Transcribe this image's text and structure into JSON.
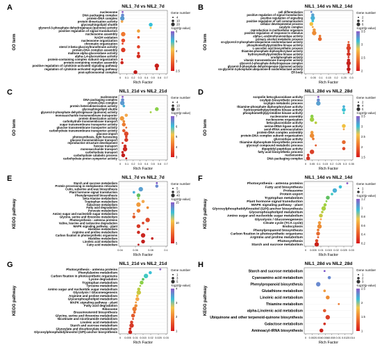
{
  "chart_data": [
    {
      "panel": "A",
      "type": "scatter",
      "title": "NIL1_7d vs NIL2_7d",
      "xlabel": "Rich Factor",
      "ylabel": "GO term",
      "xticks": [
        "0",
        "0.1",
        "0.2",
        "0.3",
        "0.4",
        "0.5",
        "0.6",
        "0.7"
      ],
      "xlim": [
        0,
        0.75
      ],
      "size_legend_title": "Gene number",
      "size_legend": [
        "4",
        "10",
        "20"
      ],
      "color_legend_title": "-log10(p-value)",
      "color_ticks": [
        "2.5",
        "3",
        "4",
        "5",
        "6"
      ],
      "categories": [
        "nucleosome",
        "DNA packaging complex",
        "protein-DNA complex",
        "protein dimerization activity",
        "glycosphingolipid shuttle",
        "glycerol-3-phosphate dehydrogenase (quinone) activity",
        "positive regulation of signal transduction",
        "nucleosome assembly",
        "NADH oxidation",
        "nucleosome organization",
        "chromatin organization",
        "sterol 3-beta-glucosyltransferase activity",
        "protein-DNA complex assembly",
        "maltose alpha-glucosidase activity",
        "alpha-1,4-glucosidase activity",
        "protein-containing complex subunit organization",
        "protein-containing complex assembly",
        "positive regulation of cytokinin-activated signaling pathway",
        "regulation of cytokinin-activated signaling pathway",
        "post-spliceosomal complex"
      ],
      "x": [
        0.04,
        0.04,
        0.035,
        0.03,
        0.5,
        0.5,
        0.3,
        0.05,
        0.3,
        0.05,
        0.04,
        0.3,
        0.05,
        0.3,
        0.3,
        0.03,
        0.03,
        0.6,
        0.6,
        0.25
      ],
      "colors": [
        "#8e5cc8",
        "#6a8ad0",
        "#5a9ad0",
        "#f2a64a",
        "#36c0d8",
        "#f3c64a",
        "#f0a038",
        "#f07830",
        "#ec5a2e",
        "#e84a2a",
        "#e44428",
        "#e04026",
        "#dc3a24",
        "#d83222",
        "#d42c20",
        "#d0281e",
        "#cc241c",
        "#c8201a",
        "#c41c18",
        "#c01816"
      ]
    },
    {
      "panel": "B",
      "type": "scatter",
      "title": "NIL1_14d vs NIL2_14d",
      "xlabel": "Rich Factor",
      "ylabel": "GO term",
      "xticks": [
        "0",
        "0.05",
        "0.1",
        "0.15",
        "0.2",
        "0.25",
        "0.3"
      ],
      "xlim": [
        0,
        0.32
      ],
      "size_legend_title": "Gene number",
      "size_legend": [
        "2",
        "4",
        "6"
      ],
      "color_legend_title": "-log10(p-value)",
      "color_ticks": [
        "2",
        "2.5",
        "3",
        "3.5"
      ],
      "categories": [
        "cell differentiation",
        "positive regulation of signal transduction",
        "positive regulation of signaling",
        "positive regulation of cell communication",
        "cellular developmental process",
        "catalytic complex",
        "reproduction in multicellular organism",
        "positive regulation of response to stimulus",
        "alpha-L-arabinofuranosidase activity",
        "primary alcohol metabolic process",
        "sn-glycerol-3-phosphate:ubiquinone oxidoreductase activity",
        "phosphomethylpyrimidine kinase activity",
        "L-ascorbic acid biosynthetic process",
        "thiamine-phosphate diphosphorylase activity",
        "hydroxymethylpyrimidine kinase activity",
        "urodiphosphate activity",
        "vitamin transmembrane transporter activity",
        "glycerol-3-phosphate dehydrogenase complex",
        "glycerol-3-phosphate dehydrogenase (quinone) activity",
        "sn-glycerol-3-phosphate:ubiquinone-8 oxidoreductase activity",
        "ER body"
      ],
      "x": [
        0.04,
        0.05,
        0.05,
        0.05,
        0.04,
        0.05,
        0.06,
        0.06,
        0.1,
        0.1,
        0.3,
        0.3,
        0.3,
        0.3,
        0.3,
        0.3,
        0.3,
        0.3,
        0.3,
        0.3,
        0.3
      ],
      "colors": [
        "#6a8ad0",
        "#5aa0d0",
        "#48b0d6",
        "#3ac0d6",
        "#f0c040",
        "#f4a84c",
        "#f09a3c",
        "#ec8c34",
        "#ea7a30",
        "#e66a2e",
        "#e25a2c",
        "#de4a2a",
        "#da4028",
        "#d63826",
        "#d23224",
        "#ce2c22",
        "#ca2620",
        "#c6221e",
        "#c21e1c",
        "#be1a1a",
        "#ba1618"
      ]
    },
    {
      "panel": "C",
      "type": "scatter",
      "title": "NIL1_21d vs NIL2_21d",
      "xlabel": "Rich Factor",
      "ylabel": "GO term",
      "xticks": [
        "0",
        "0.1",
        "0.2",
        "0.3",
        "0.4",
        "0.5",
        "0.6",
        "0.7"
      ],
      "xlim": [
        0,
        0.75
      ],
      "size_legend_title": "Gene number",
      "size_legend": [
        "4",
        "10",
        "20"
      ],
      "color_legend_title": "-log10(p-value)",
      "color_ticks": [
        "3",
        "4",
        "5",
        "6",
        "7"
      ],
      "categories": [
        "nucleosome",
        "DNA packaging complex",
        "protein-DNA complex",
        "protein heterodimerization activity",
        "glycosphingolipid shuttle",
        "glycerol-3-phosphate dehydrogenase (quinone) activity",
        "monosaccharide transmembrane transporter",
        "protein dimerization activity",
        "carbohydrate transmembrane transport",
        "sugar transmembrane transporter activity",
        "glucose transmembrane transporter activity",
        "carbohydrate transmembrane transporter activity",
        "glucose import",
        "photosynthesis, light harvesting",
        "glucose transmembrane transport",
        "reproductive structure development",
        "hexose transport",
        "monosaccharide transport",
        "carbohydrate transport",
        "carbohydrate catabolic process",
        "carbohydrate proton symporter activity"
      ],
      "x": [
        0.04,
        0.04,
        0.035,
        0.06,
        0.6,
        0.5,
        0.1,
        0.03,
        0.06,
        0.06,
        0.1,
        0.06,
        0.1,
        0.1,
        0.1,
        0.04,
        0.08,
        0.08,
        0.04,
        0.05,
        0.1
      ],
      "colors": [
        "#8e5cc8",
        "#6a8ad0",
        "#5a9ad0",
        "#48b0d6",
        "#8ad048",
        "#a0d040",
        "#f4a84c",
        "#f09a3c",
        "#ec8c34",
        "#ea7a30",
        "#e66a2e",
        "#e25a2c",
        "#de4a2a",
        "#da4028",
        "#d63826",
        "#d23224",
        "#ce2c22",
        "#ca2620",
        "#c6221e",
        "#c21e1c",
        "#be1a1a"
      ]
    },
    {
      "panel": "D",
      "type": "scatter",
      "title": "NIL1_28d vs NIL2_28d",
      "xlabel": "Rich Factor",
      "ylabel": "GO term",
      "xticks": [
        "0",
        "0.05",
        "0.1",
        "0.15",
        "0.2",
        "0.25",
        "0.3",
        "0.35"
      ],
      "xlim": [
        0,
        0.36
      ],
      "size_legend_title": "Gene number",
      "size_legend": [
        "2",
        "4",
        "6"
      ],
      "color_legend_title": "-log10(p-value)",
      "color_ticks": [
        "1.5",
        "2",
        "2.5",
        "3",
        "3.5"
      ],
      "categories": [
        "scopolin beta-glucosidase activity",
        "oxylipin biosynthetic process",
        "oxylipin metabolic process",
        "thiamine-phosphate diphosphorylase activity",
        "hydroxymethylpyrimidine kinase activity",
        "phosphomethylpyrimidine kinase activity",
        "nucleosome assembly",
        "nucleosome organization",
        "beta-glucosidase activity",
        "serine-tRNA ligase activity",
        "seryl-tRNA aminoacylation",
        "protein-DNA complex assembly",
        "protein-DNA complex subunit organization",
        "glucosidase activity",
        "thiamine diphosphate biosynthetic process",
        "glycosyl compound metabolic process",
        "dipeptidyl-peptidase activity",
        "fatty acid biosynthetic process",
        "nucleosome",
        "DNA packaging complex"
      ],
      "x": [
        0.1,
        0.1,
        0.1,
        0.3,
        0.3,
        0.3,
        0.05,
        0.05,
        0.08,
        0.3,
        0.3,
        0.05,
        0.05,
        0.06,
        0.3,
        0.08,
        0.3,
        0.05,
        0.02,
        0.02
      ],
      "colors": [
        "#8e5cc8",
        "#6a8ad0",
        "#5aa0d0",
        "#48b0d6",
        "#3ac0d6",
        "#40c8c0",
        "#8ad048",
        "#a0d040",
        "#b8cc40",
        "#f0c040",
        "#f4a84c",
        "#f09a3c",
        "#ec8c34",
        "#ea7a30",
        "#e66a2e",
        "#e25a2c",
        "#de4a2a",
        "#da4028",
        "#d63826",
        "#d23224"
      ]
    },
    {
      "panel": "E",
      "type": "scatter",
      "title": "NIL1_7d vs NIL2_7d",
      "xlabel": "Rich Factor",
      "ylabel": "KEGG pathway",
      "xticks": [
        "0.04",
        "0.06",
        "0.08",
        "0.1"
      ],
      "xlim": [
        0.02,
        0.12
      ],
      "size_legend_title": "Gene number",
      "size_legend": [
        "5",
        "15",
        "40"
      ],
      "color_legend_title": "-log10(p-value)",
      "color_ticks": [
        "5",
        "10",
        "15"
      ],
      "categories": [
        "Starch and sucrose metabolism",
        "Protein processing in endoplasmic reticulum",
        "Cutin, suberine and wax biosynthesis",
        "Plant hormone signal transduction",
        "Phenylpropanoid biosynthesis",
        "beta-Alanine metabolism",
        "Tryptophan metabolism",
        "Galactose metabolism",
        "Fatty acid degradation",
        "Pyruvate metabolism",
        "Amino sugar and nucleotide sugar metabolism",
        "Glycine, serine and threonine metabolism",
        "Photosynthesis - antenna proteins",
        "Valine, leucine and isoleucine degradation",
        "MAPK signaling pathway - plant",
        "Histidine metabolism",
        "Arginine and proline metabolism",
        "Carbon fixation in photosynthetic organisms",
        "Histidine metabolism",
        "Linoleic acid metabolism",
        "Fatty acid metabolism"
      ],
      "x": [
        0.1,
        0.1,
        0.065,
        0.05,
        0.06,
        0.06,
        0.07,
        0.06,
        0.08,
        0.06,
        0.05,
        0.05,
        0.08,
        0.07,
        0.06,
        0.08,
        0.06,
        0.07,
        0.09,
        0.07,
        0.06
      ],
      "colors": [
        "#7a50c8",
        "#6a8ad0",
        "#5aa0d0",
        "#48b0d6",
        "#60c060",
        "#9ad040",
        "#f4a84c",
        "#f09a3c",
        "#ec8c34",
        "#ea7a30",
        "#e66a2e",
        "#e25a2c",
        "#de4a2a",
        "#da4028",
        "#d63826",
        "#d23224",
        "#ce2c22",
        "#ca2620",
        "#c6221e",
        "#c21e1c",
        "#be1a1a"
      ]
    },
    {
      "panel": "F",
      "type": "scatter",
      "title": "NIL1_14d vs NIL2_14d",
      "xlabel": "Rich Factor",
      "ylabel": "KEGG pathway",
      "xticks": [
        "0",
        "0.005",
        "0.01",
        "0.015",
        "0.02",
        "0.025",
        "0.03"
      ],
      "xlim": [
        0,
        0.033
      ],
      "size_legend_title": "Gene number",
      "size_legend": [
        "1",
        "2"
      ],
      "color_legend_title": "-log10(p-value)",
      "color_ticks": [
        "0.2",
        "0.4",
        "0.6",
        "0.8",
        "1",
        "1.2"
      ],
      "categories": [
        "Photosynthesis - antenna proteins",
        "Fatty acid biosynthesis",
        "Proteasome",
        "Protein export",
        "Tryptophan metabolism",
        "Plant hormone signal transduction",
        "MAPK signaling pathway - plant",
        "Glycosylphosphatidylinositol (GPI)-anchor biosynthesis",
        "Glycerophospholipid metabolism",
        "Amino sugar and nucleotide sugar metabolism",
        "Glycolysis / Gluconeogenesis",
        "Citrate cycle (TCA cycle)",
        "Endocytosis",
        "Phenylpropanoid biosynthesis",
        "Carbon fixation in photosynthetic organisms",
        "Arginine and proline metabolism",
        "Photosynthesis",
        "Starch and sucrose metabolism"
      ],
      "x": [
        0.03,
        0.025,
        0.021,
        0.019,
        0.016,
        0.015,
        0.014,
        0.013,
        0.012,
        0.011,
        0.011,
        0.01,
        0.01,
        0.009,
        0.009,
        0.009,
        0.008,
        0.008
      ],
      "colors": [
        "#8e5cc8",
        "#3ac0d6",
        "#48b0d6",
        "#40c8c0",
        "#60c060",
        "#8ad048",
        "#a0d040",
        "#a8d040",
        "#b8cc40",
        "#c8c840",
        "#f4a84c",
        "#f09a3c",
        "#ec8c34",
        "#ea7a30",
        "#e66a2e",
        "#e25a2c",
        "#de4a2a",
        "#c8201a"
      ]
    },
    {
      "panel": "G",
      "type": "scatter",
      "title": "NIL1_21d vs NIL2_21d",
      "xlabel": "Rich Factor",
      "ylabel": "KEGG pathway",
      "xticks": [
        "0",
        "0.005",
        "0.01",
        "0.015",
        "0.02",
        "0.025",
        "0.03"
      ],
      "xlim": [
        0,
        0.032
      ],
      "size_legend_title": "Gene number",
      "size_legend": [
        "1",
        "3",
        "5"
      ],
      "color_legend_title": "-log10(p-value)",
      "color_ticks": [
        "1",
        "2",
        "3",
        "4"
      ],
      "categories": [
        "Photosynthesis - antenna proteins",
        "Phenylalanine metabolism",
        "Carbon fixation in photosynthetic organisms",
        "Lysine degradation",
        "Tryptophan metabolism",
        "Tyrosine metabolism",
        "Amino sugar and nucleotide sugar metabolism",
        "Glycolysis / Gluconeogenesis",
        "Arginine and proline metabolism",
        "Glycerophospholipid metabolism",
        "MAPK signaling pathway - plant",
        "Fatty acid degradation",
        "Ribosome",
        "Brassinosteroid biosynthesis",
        "Glycine, serine and threonine metabolism",
        "Nicotinate and nicotinamide metabolism",
        "Linoleic acid metabolism",
        "Starch and sucrose metabolism",
        "Glyoxylate and dicarboxylate metabolism",
        "Glycosylphosphatidylinositol (GPI)-anchor biosynthesis"
      ],
      "x": [
        0.028,
        0.021,
        0.018,
        0.016,
        0.015,
        0.014,
        0.013,
        0.013,
        0.012,
        0.012,
        0.011,
        0.011,
        0.01,
        0.01,
        0.009,
        0.009,
        0.008,
        0.008,
        0.007,
        0.007
      ],
      "colors": [
        "#8e5cc8",
        "#3ac0d6",
        "#40c8c0",
        "#60c060",
        "#8ad048",
        "#a0d040",
        "#b8cc40",
        "#c8c840",
        "#f0c040",
        "#f4a84c",
        "#f09a3c",
        "#ec8c34",
        "#ea7a30",
        "#e66a2e",
        "#e25a2c",
        "#de4a2a",
        "#da4028",
        "#d63826",
        "#d23224",
        "#c8201a"
      ]
    },
    {
      "panel": "H",
      "type": "scatter",
      "title": "NIL1_28d vs NIL2_28d",
      "xlabel": "Rich Factor",
      "ylabel": "KEGG pathway",
      "xticks": [
        "0",
        "0.002",
        "0.004",
        "0.006",
        "0.008",
        "0.01",
        "0.012",
        "0.014"
      ],
      "xlim": [
        0,
        0.0145
      ],
      "size_legend_title": "Gene number",
      "size_legend": [
        "1",
        "2",
        "3"
      ],
      "color_legend_title": "-log10(p-value)",
      "color_ticks": [
        "1",
        "1.5",
        "2",
        "2.5"
      ],
      "categories": [
        "Starch and sucrose metabolism",
        "Cyanoamino acid metabolism",
        "Phenylpropanoid biosynthesis",
        "Glutathione metabolism",
        "Linoleic acid metabolism",
        "Thiamine metabolism",
        "alpha-Linolenic acid metabolism",
        "Ubiquinone and other terpenoid-quinone biosynthesis",
        "Galactose metabolism",
        "Aminoacyl-tRNA biosynthesis"
      ],
      "x": [
        0.006,
        0.0075,
        0.004,
        0.006,
        0.007,
        0.0105,
        0.006,
        0.007,
        0.006,
        0.005
      ],
      "colors": [
        "#7a50c8",
        "#6a8ad0",
        "#6a8ad0",
        "#f09a3c",
        "#ec8c34",
        "#ea7a30",
        "#e25a2c",
        "#da4028",
        "#d23224",
        "#c8201a"
      ]
    }
  ]
}
